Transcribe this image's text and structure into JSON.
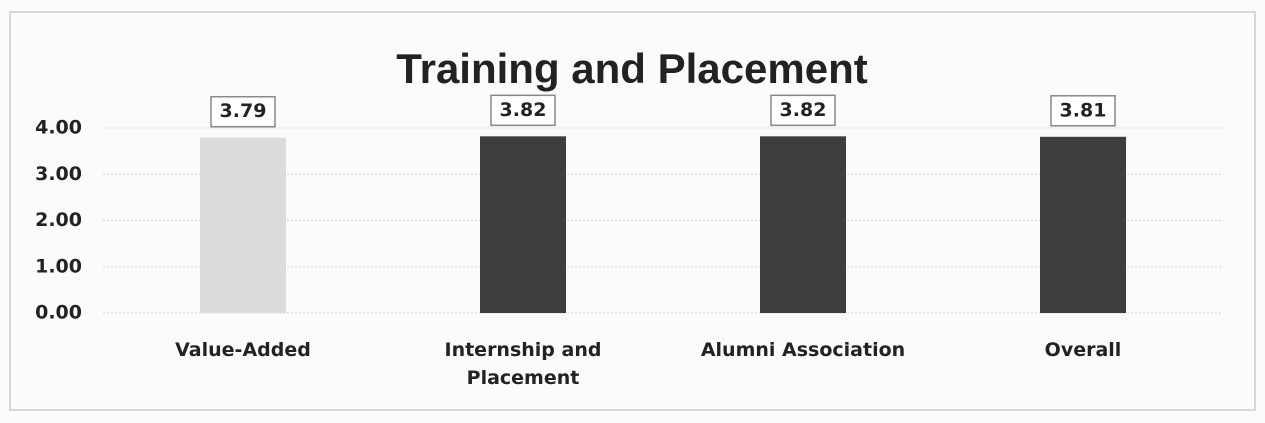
{
  "chart_data": {
    "type": "bar",
    "title": "Training and Placement",
    "categories": [
      "Value-Added",
      "Internship and Placement",
      "Alumni Association",
      "Overall"
    ],
    "values": [
      3.79,
      3.82,
      3.82,
      3.81
    ],
    "colors": [
      "#dcdcdc",
      "#3e3e3e",
      "#3e3e3e",
      "#3e3e3e"
    ],
    "ylim": [
      0,
      4
    ],
    "yticks": [
      {
        "value": 0,
        "label": "0.00"
      },
      {
        "value": 1,
        "label": "1.00"
      },
      {
        "value": 2,
        "label": "2.00"
      },
      {
        "value": 3,
        "label": "3.00"
      },
      {
        "value": 4,
        "label": "4.00"
      }
    ],
    "grid": true
  }
}
